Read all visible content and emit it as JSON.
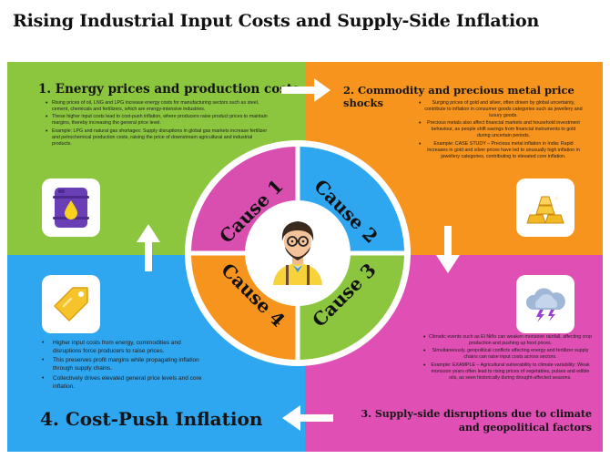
{
  "title": "Rising Industrial Input Costs and Supply-Side Inflation",
  "colors": {
    "green": "#8cc63e",
    "orange": "#f7941d",
    "magenta": "#e04fb3",
    "blue": "#2ea6f0",
    "center": "#ffffff"
  },
  "sections": {
    "energy": {
      "heading": "1. Energy prices and production costs",
      "icon": "oil-barrel-icon",
      "bullets": [
        "Rising prices of oil, LNG and LPG increase energy costs for manufacturing sectors such as steel, cement, chemicals and fertilizers, which are energy-intensive industries.",
        "These higher input costs lead to cost-push inflation, where producers raise product prices to maintain margins, thereby increasing the general price level.",
        "Example: LPG and natural gas shortages: Supply disruptions in global gas markets increase fertilizer and petrochemical production costs, raising the price of downstream agricultural and industrial products."
      ]
    },
    "commodity": {
      "heading": "2. Commodity and precious metal price shocks",
      "icon": "gold-bars-icon",
      "bullets": [
        "Surging prices of gold and silver, often driven by global uncertainty, contribute to inflation in consumer goods categories such as jewellery and luxury goods.",
        "Precious metals also affect financial markets and household investment behaviour, as people shift savings from financial instruments to gold during uncertain periods.",
        "Example: CASE STUDY – Precious metal inflation in India: Rapid increases in gold and silver prices have led to unusually high inflation in jewellery categories, contributing to elevated core inflation."
      ]
    },
    "supply": {
      "heading": "3. Supply-side disruptions due to climate and geopolitical factors",
      "icon": "storm-cloud-icon",
      "bullets": [
        "Climatic events such as El Niño can weaken monsoon rainfall, affecting crop production and pushing up food prices.",
        "Simultaneously, geopolitical conflicts affecting energy and fertilizer supply chains can raise input costs across sectors.",
        "Example: EXAMPLE – Agricultural vulnerability to climate variability: Weak monsoon years often lead to rising prices of vegetables, pulses and edible oils, as seen historically during drought-affected seasons."
      ]
    },
    "costpush": {
      "heading": "4. Cost-Push Inflation",
      "icon": "price-tag-icon",
      "bullets": [
        "Higher input costs from energy, commodities and disruptions force producers to raise prices.",
        "This preserves profit margins while propagating inflation through supply chains.",
        "Collectively drives elevated general price levels and core inflation."
      ]
    }
  },
  "wheel": {
    "labels": [
      "Cause 1",
      "Cause 2",
      "Cause 3",
      "Cause 4"
    ],
    "segment_colors": [
      "#d94fb0",
      "#2ea6f0",
      "#8cc63e",
      "#f7941d"
    ],
    "center_icon": "economist-avatar-icon"
  }
}
